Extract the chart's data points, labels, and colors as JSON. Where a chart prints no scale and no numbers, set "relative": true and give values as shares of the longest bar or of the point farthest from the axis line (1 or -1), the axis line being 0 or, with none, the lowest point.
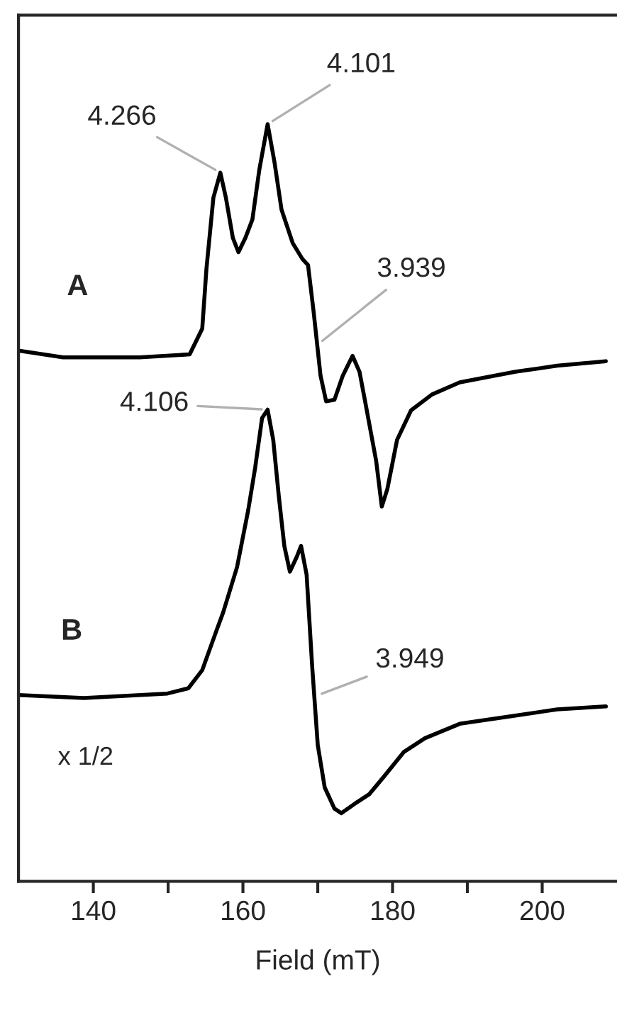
{
  "chart_data": {
    "type": "line",
    "relative": true,
    "xlabel": "Field (mT)",
    "xlim": [
      130,
      210
    ],
    "xticks": [
      140,
      {
        "value": 150,
        "label": null
      },
      160,
      {
        "value": 170,
        "label": null
      },
      180,
      {
        "value": 190,
        "label": null
      },
      200
    ],
    "grid": false,
    "legend": false,
    "marker": "none",
    "line_style": "solid",
    "series": [
      {
        "name": "A",
        "color": "#000000",
        "x": [
          130.0,
          135.95,
          146.19,
          152.88,
          154.56,
          155.12,
          156.05,
          156.98,
          157.72,
          158.65,
          159.4,
          160.33,
          161.26,
          162.19,
          163.3,
          164.23,
          165.16,
          166.65,
          167.95,
          168.7,
          169.44,
          170.37,
          171.12,
          172.23,
          173.35,
          174.65,
          175.58,
          176.33,
          177.81,
          178.56,
          179.3,
          180.6,
          182.47,
          185.26,
          188.98,
          196.42,
          202.0,
          208.51
        ],
        "values": [
          0.701,
          0.692,
          0.692,
          0.696,
          0.73,
          0.809,
          0.903,
          0.936,
          0.903,
          0.85,
          0.831,
          0.85,
          0.874,
          0.94,
          1.0,
          0.949,
          0.887,
          0.843,
          0.822,
          0.814,
          0.753,
          0.668,
          0.634,
          0.636,
          0.668,
          0.694,
          0.673,
          0.634,
          0.555,
          0.495,
          0.518,
          0.583,
          0.622,
          0.643,
          0.659,
          0.673,
          0.681,
          0.687
        ]
      },
      {
        "name": "B",
        "color": "#000000",
        "x": [
          130.0,
          138.74,
          149.91,
          152.7,
          154.56,
          156.42,
          157.35,
          159.21,
          160.7,
          161.63,
          162.56,
          163.3,
          164.05,
          164.79,
          165.53,
          166.28,
          167.21,
          167.77,
          168.51,
          169.26,
          170.0,
          170.93,
          172.23,
          173.16,
          175.02,
          176.88,
          178.74,
          181.53,
          184.33,
          188.98,
          196.42,
          202.0,
          208.51
        ],
        "values": [
          0.246,
          0.242,
          0.248,
          0.255,
          0.279,
          0.33,
          0.355,
          0.415,
          0.49,
          0.546,
          0.612,
          0.623,
          0.583,
          0.509,
          0.443,
          0.409,
          0.429,
          0.443,
          0.405,
          0.283,
          0.18,
          0.124,
          0.096,
          0.09,
          0.103,
          0.115,
          0.137,
          0.171,
          0.189,
          0.208,
          0.219,
          0.227,
          0.231
        ]
      }
    ],
    "annotations": [
      {
        "text": "4.266",
        "x": 157.0,
        "y": 0.936
      },
      {
        "text": "4.101",
        "x": 163.3,
        "y": 1.0
      },
      {
        "text": "3.939",
        "x": 170.0,
        "y": 0.709
      },
      {
        "text": "4.106",
        "x": 163.3,
        "y": 0.623
      },
      {
        "text": "3.949",
        "x": 169.8,
        "y": 0.245
      },
      "x 1/2"
    ]
  }
}
